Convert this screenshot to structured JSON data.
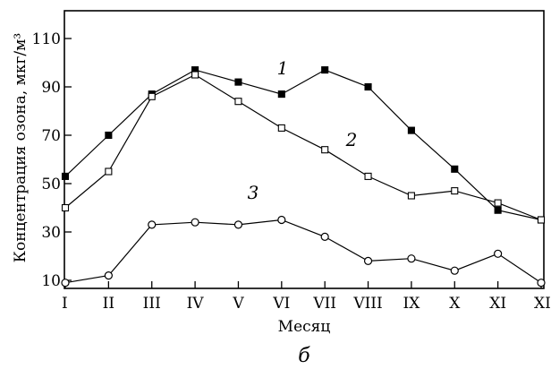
{
  "chart_data": {
    "type": "line",
    "panel_label": "б",
    "xlabel": "Месяц",
    "ylabel": "Концентрация озона, мкг/м³",
    "categories": [
      "I",
      "II",
      "III",
      "IV",
      "V",
      "VI",
      "VII",
      "VIII",
      "IX",
      "X",
      "XI",
      "XII"
    ],
    "y_ticks": [
      10,
      30,
      50,
      70,
      90,
      110
    ],
    "ylim": [
      8,
      120
    ],
    "grid": false,
    "legend": "none",
    "series": [
      {
        "name": "1",
        "marker": "filled-square",
        "values": [
          53,
          70,
          87,
          97,
          92,
          87,
          97,
          90,
          72,
          56,
          39,
          35
        ]
      },
      {
        "name": "2",
        "marker": "open-square",
        "values": [
          40,
          55,
          86,
          95,
          84,
          73,
          64,
          53,
          45,
          47,
          42,
          35
        ]
      },
      {
        "name": "3",
        "marker": "open-circle",
        "values": [
          9,
          12,
          33,
          34,
          33,
          35,
          28,
          18,
          19,
          14,
          21,
          9
        ]
      }
    ]
  }
}
